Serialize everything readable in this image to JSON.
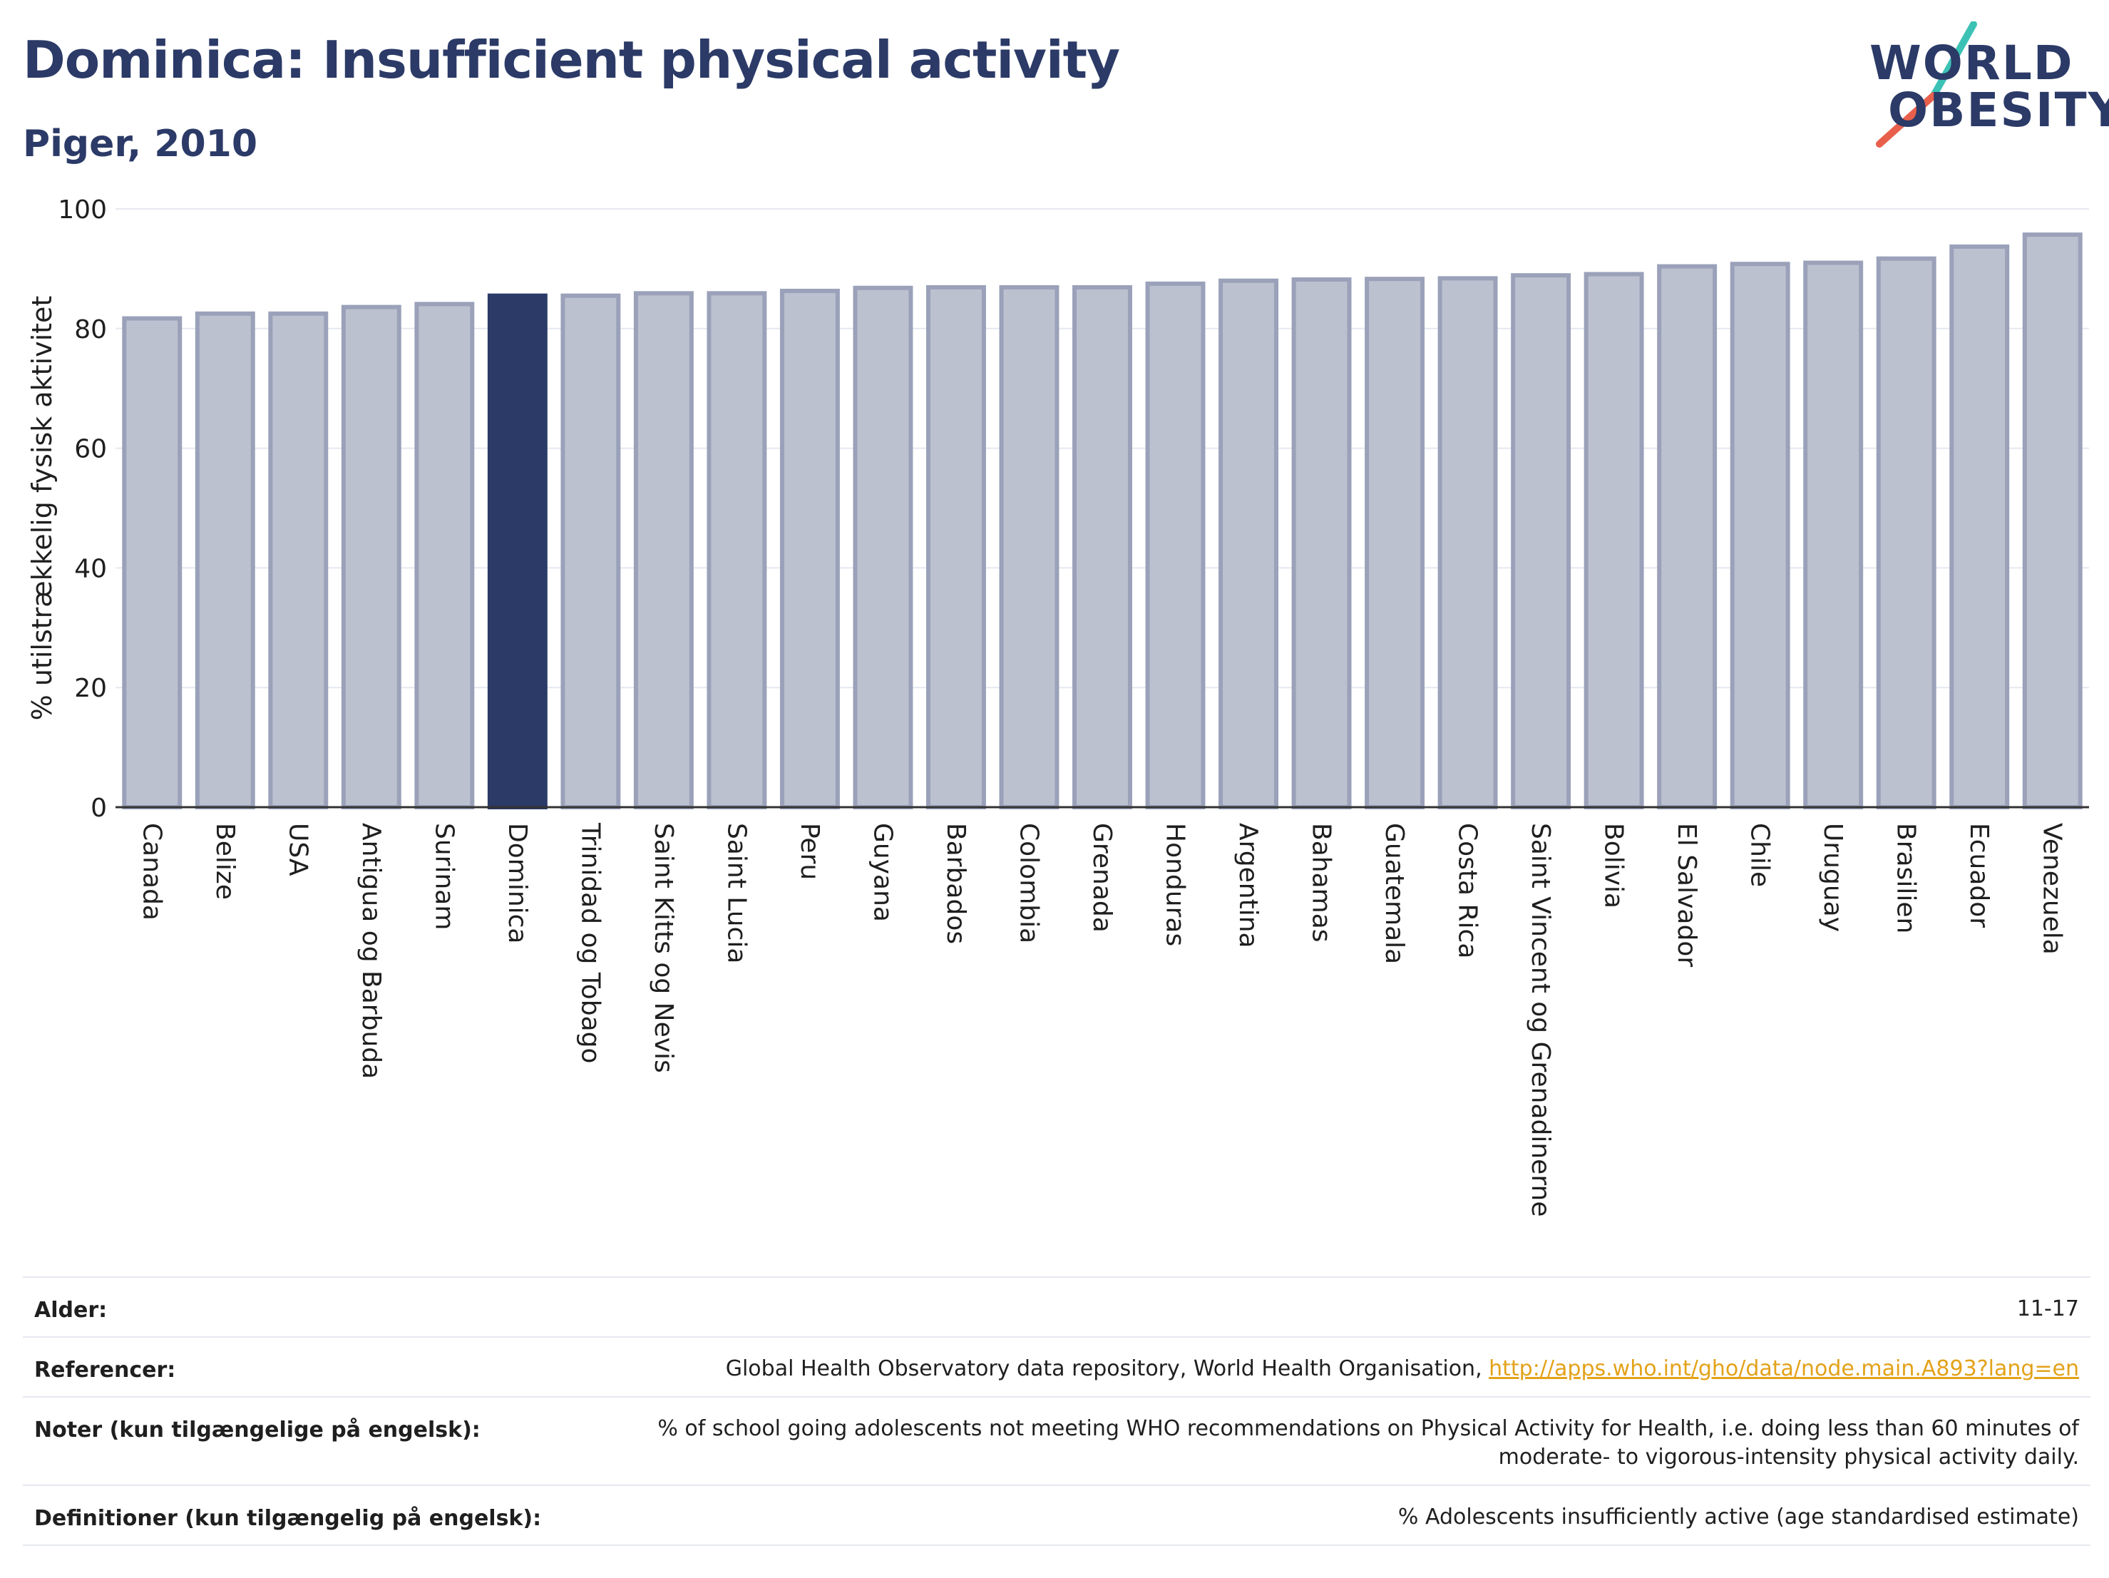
{
  "header": {
    "title": "Dominica: Insufficient physical activity",
    "subtitle": "Piger, 2010"
  },
  "logo": {
    "line1": "WORLD",
    "line2": "OBESITY",
    "colors": {
      "text": "#2b3a67",
      "slash_top": "#3cc2b5",
      "slash_bottom": "#e8604c"
    }
  },
  "colors": {
    "bar_default": "#bcc1d0",
    "bar_default_stroke": "#9aa1b9",
    "bar_highlight": "#2b3a67",
    "gridline": "#e6e8f0",
    "axis": "#333333"
  },
  "chart_data": {
    "type": "bar",
    "ylabel": "% utilstrækkelig fysisk aktivitet",
    "xlabel": "",
    "ylim": [
      0,
      100
    ],
    "yticks": [
      0,
      20,
      40,
      60,
      80,
      100
    ],
    "grid": true,
    "highlight": "Dominica",
    "categories": [
      "Canada",
      "Belize",
      "USA",
      "Antigua og Barbuda",
      "Surinam",
      "Dominica",
      "Trinidad og Tobago",
      "Saint Kitts og Nevis",
      "Saint Lucia",
      "Peru",
      "Guyana",
      "Barbados",
      "Colombia",
      "Grenada",
      "Honduras",
      "Argentina",
      "Bahamas",
      "Guatemala",
      "Costa Rica",
      "Saint Vincent og Grenadinerne",
      "Bolivia",
      "El Salvador",
      "Chile",
      "Uruguay",
      "Brasilien",
      "Ecuador",
      "Venezuela"
    ],
    "values": [
      81.7,
      82.5,
      82.5,
      83.6,
      84.1,
      85.5,
      85.5,
      85.9,
      85.9,
      86.3,
      86.8,
      86.9,
      86.9,
      86.9,
      87.5,
      88.0,
      88.2,
      88.3,
      88.4,
      88.9,
      89.1,
      90.4,
      90.8,
      91.0,
      91.7,
      93.7,
      95.7
    ]
  },
  "info": {
    "rows": [
      {
        "label": "Alder:",
        "value": "11-17"
      },
      {
        "label": "Referencer:",
        "value": "Global Health Observatory data repository, World Health Organisation, ",
        "link": "http://apps.who.int/gho/data/node.main.A893?lang=en"
      },
      {
        "label": "Noter (kun tilgængelige på engelsk):",
        "value_line1": "% of school going adolescents not meeting WHO recommendations on Physical Activity for Health, i.e. doing less than 60 minutes of",
        "value_line2": "moderate- to vigorous-intensity physical activity daily."
      },
      {
        "label": "Definitioner (kun tilgængelig på engelsk):",
        "value": "% Adolescents insufficiently active (age standardised estimate)"
      }
    ]
  }
}
